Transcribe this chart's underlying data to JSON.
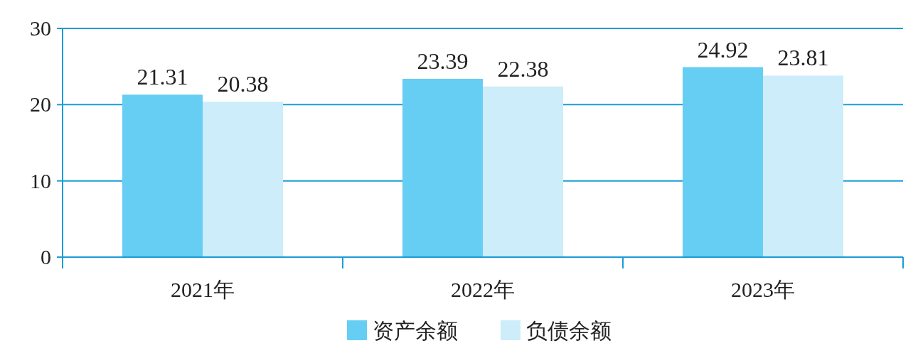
{
  "chart_data": {
    "type": "bar",
    "categories": [
      "2021年",
      "2022年",
      "2023年"
    ],
    "series": [
      {
        "name": "资产余额",
        "color": "#66cef3",
        "values": [
          21.31,
          23.39,
          24.92
        ]
      },
      {
        "name": "负债余额",
        "color": "#ccedf9",
        "values": [
          20.38,
          22.38,
          23.81
        ]
      }
    ],
    "ylim": [
      0,
      30
    ],
    "yticks": [
      0,
      10,
      20,
      30
    ],
    "grid": "y",
    "legend": "bottom",
    "data_labels": true
  }
}
